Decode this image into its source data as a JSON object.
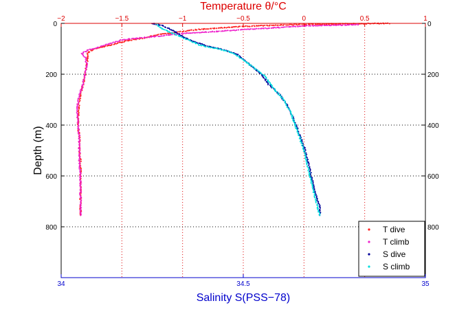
{
  "chart_data": {
    "type": "scatter",
    "title_top": "Temperature θ/°C",
    "xlabel_bottom": "Salinity S(PSS−78)",
    "ylabel": "Depth (m)",
    "x_bottom": {
      "lim": [
        34,
        35
      ],
      "ticks": [
        34,
        34.5,
        35
      ],
      "tick_labels": [
        "34",
        "34.5",
        "35"
      ]
    },
    "x_top": {
      "lim": [
        -2,
        1
      ],
      "ticks": [
        -2,
        -1.5,
        -1,
        -0.5,
        0,
        0.5,
        1
      ],
      "tick_labels": [
        "−2",
        "−1.5",
        "−1",
        "−0.5",
        "0",
        "0.5",
        "1"
      ]
    },
    "y": {
      "lim": [
        0,
        1000
      ],
      "reversed": true,
      "ticks": [
        0,
        200,
        400,
        600,
        800
      ],
      "tick_labels": [
        "0",
        "200",
        "400",
        "600",
        "800"
      ]
    },
    "grid": true,
    "legend_position": "bottom-right",
    "colors": {
      "T dive": "#ff2222",
      "T climb": "#ee22cc",
      "S dive": "#000099",
      "S climb": "#00dddd"
    },
    "series": [
      {
        "name": "T dive",
        "axis": "top",
        "color": "#ff2222",
        "points": [
          [
            0.7,
            0
          ],
          [
            0.3,
            2
          ],
          [
            -0.1,
            5
          ],
          [
            -0.5,
            12
          ],
          [
            -0.9,
            25
          ],
          [
            -1.2,
            45
          ],
          [
            -1.35,
            60
          ],
          [
            -1.45,
            68
          ],
          [
            -1.55,
            80
          ],
          [
            -1.65,
            92
          ],
          [
            -1.72,
            100
          ],
          [
            -1.76,
            108
          ],
          [
            -1.78,
            115
          ],
          [
            -1.78,
            135
          ],
          [
            -1.79,
            160
          ],
          [
            -1.8,
            195
          ],
          [
            -1.82,
            240
          ],
          [
            -1.85,
            300
          ],
          [
            -1.86,
            350
          ],
          [
            -1.86,
            400
          ],
          [
            -1.85,
            450
          ],
          [
            -1.85,
            500
          ],
          [
            -1.84,
            550
          ],
          [
            -1.84,
            600
          ],
          [
            -1.84,
            650
          ],
          [
            -1.84,
            700
          ],
          [
            -1.84,
            755
          ]
        ]
      },
      {
        "name": "T climb",
        "axis": "top",
        "color": "#ee22cc",
        "points": [
          [
            0.45,
            5
          ],
          [
            0.0,
            10
          ],
          [
            -0.5,
            25
          ],
          [
            -1.0,
            40
          ],
          [
            -1.3,
            55
          ],
          [
            -1.5,
            65
          ],
          [
            -1.6,
            80
          ],
          [
            -1.7,
            95
          ],
          [
            -1.78,
            105
          ],
          [
            -1.83,
            118
          ],
          [
            -1.8,
            135
          ],
          [
            -1.79,
            160
          ],
          [
            -1.8,
            195
          ],
          [
            -1.82,
            240
          ],
          [
            -1.86,
            300
          ],
          [
            -1.87,
            350
          ],
          [
            -1.86,
            400
          ],
          [
            -1.85,
            450
          ],
          [
            -1.85,
            500
          ],
          [
            -1.85,
            550
          ],
          [
            -1.84,
            600
          ],
          [
            -1.84,
            650
          ],
          [
            -1.84,
            700
          ],
          [
            -1.84,
            755
          ]
        ]
      },
      {
        "name": "S dive",
        "axis": "bottom",
        "color": "#000099",
        "points": [
          [
            34.25,
            0
          ],
          [
            34.28,
            10
          ],
          [
            34.31,
            30
          ],
          [
            34.33,
            50
          ],
          [
            34.36,
            70
          ],
          [
            34.4,
            90
          ],
          [
            34.45,
            105
          ],
          [
            34.48,
            120
          ],
          [
            34.5,
            140
          ],
          [
            34.52,
            165
          ],
          [
            34.55,
            200
          ],
          [
            34.57,
            240
          ],
          [
            34.6,
            280
          ],
          [
            34.62,
            320
          ],
          [
            34.64,
            380
          ],
          [
            34.65,
            420
          ],
          [
            34.66,
            460
          ],
          [
            34.67,
            500
          ],
          [
            34.68,
            560
          ],
          [
            34.69,
            620
          ],
          [
            34.7,
            680
          ],
          [
            34.71,
            720
          ],
          [
            34.71,
            755
          ]
        ]
      },
      {
        "name": "S climb",
        "axis": "bottom",
        "color": "#00dddd",
        "points": [
          [
            34.26,
            0
          ],
          [
            34.27,
            15
          ],
          [
            34.3,
            35
          ],
          [
            34.34,
            60
          ],
          [
            34.38,
            85
          ],
          [
            34.43,
            100
          ],
          [
            34.47,
            115
          ],
          [
            34.5,
            145
          ],
          [
            34.53,
            175
          ],
          [
            34.56,
            210
          ],
          [
            34.58,
            250
          ],
          [
            34.61,
            300
          ],
          [
            34.63,
            350
          ],
          [
            34.64,
            390
          ],
          [
            34.65,
            430
          ],
          [
            34.66,
            470
          ],
          [
            34.67,
            520
          ],
          [
            34.68,
            580
          ],
          [
            34.69,
            640
          ],
          [
            34.7,
            700
          ],
          [
            34.71,
            755
          ]
        ]
      }
    ]
  }
}
